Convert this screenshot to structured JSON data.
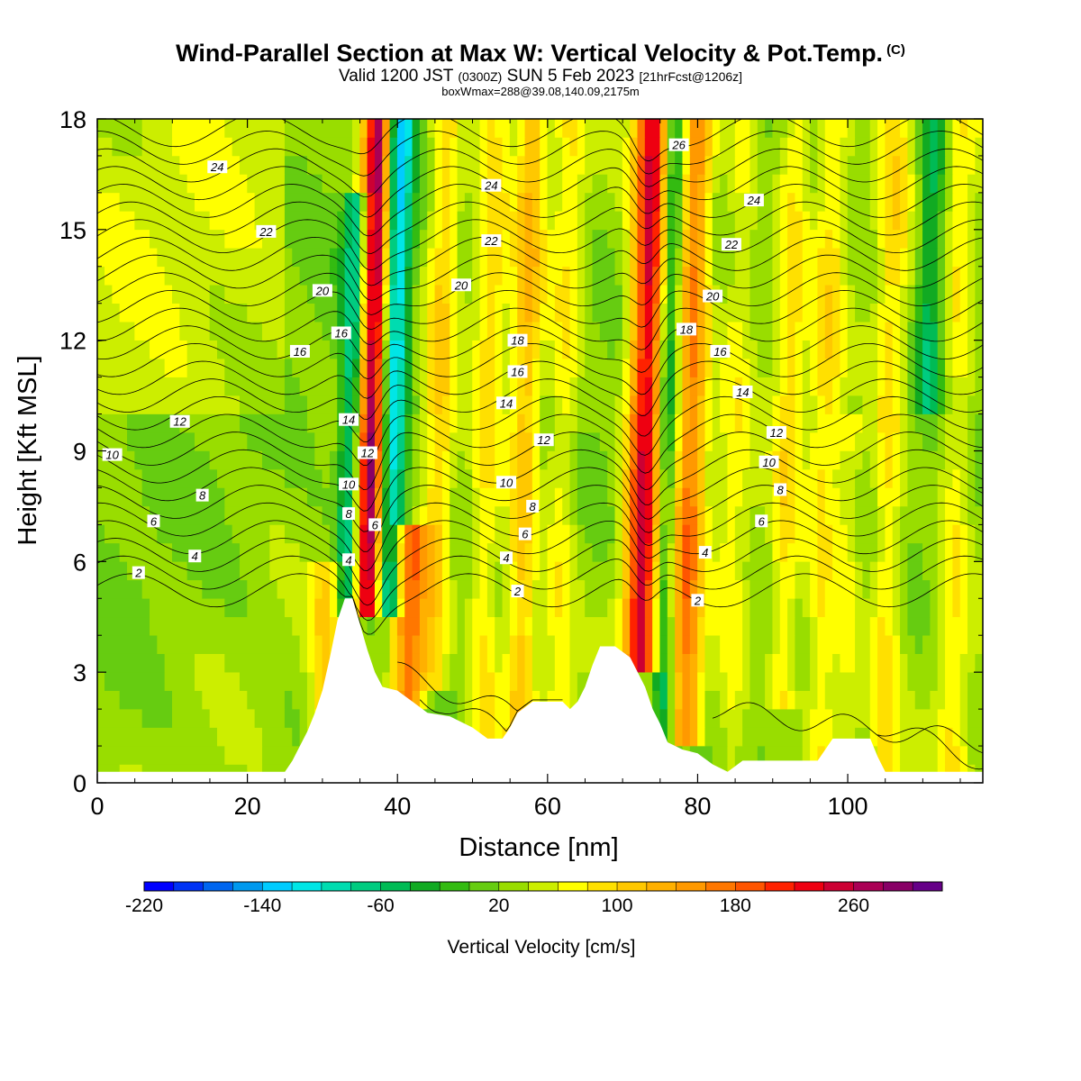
{
  "header": {
    "title": "Wind-Parallel Section at Max W: Vertical Velocity & Pot.Temp.",
    "title_mark": "(C)",
    "subtitle_valid": "Valid 1200 JST",
    "subtitle_z": "(0300Z)",
    "subtitle_date": "SUN 5 Feb 2023",
    "subtitle_fcst": "[21hrFcst@1206z]",
    "info": "boxWmax=288@39.08,140.09,2175m"
  },
  "chart_data": {
    "type": "heatmap",
    "xlabel": "Distance [nm]",
    "ylabel": "Height [Kft MSL]",
    "xlim": [
      0,
      118
    ],
    "ylim": [
      0,
      18
    ],
    "x_ticks": [
      "0",
      "20",
      "40",
      "60",
      "80",
      "100"
    ],
    "y_ticks": [
      "0",
      "3",
      "6",
      "9",
      "12",
      "15",
      "18"
    ],
    "colorbar": {
      "label": "Vertical Velocity [cm/s]",
      "range": [
        -220,
        320
      ],
      "step": 20,
      "tick_labels": [
        "-220",
        "-140",
        "-60",
        "20",
        "100",
        "180",
        "260"
      ],
      "colors": [
        "#0000ff",
        "#0033f5",
        "#0066f0",
        "#0099ee",
        "#00ccff",
        "#00e6e6",
        "#00dcb0",
        "#00cc80",
        "#00bb55",
        "#11aa22",
        "#33bb11",
        "#66cc11",
        "#99dd00",
        "#ccee00",
        "#ffff00",
        "#ffe000",
        "#ffc800",
        "#ffb000",
        "#ff9900",
        "#ff7700",
        "#ff5500",
        "#ff2200",
        "#ee0011",
        "#cc0033",
        "#aa0055",
        "#880066",
        "#660088"
      ]
    },
    "terrain": [
      [
        0,
        0.3
      ],
      [
        25,
        0.3
      ],
      [
        26,
        0.6
      ],
      [
        27,
        1.0
      ],
      [
        28,
        1.4
      ],
      [
        29,
        1.9
      ],
      [
        30,
        2.5
      ],
      [
        31,
        3.4
      ],
      [
        32,
        4.4
      ],
      [
        33,
        5.0
      ],
      [
        34,
        5.0
      ],
      [
        35,
        4.3
      ],
      [
        36,
        3.6
      ],
      [
        37,
        3.0
      ],
      [
        38,
        2.6
      ],
      [
        40,
        2.5
      ],
      [
        42,
        2.2
      ],
      [
        44,
        1.9
      ],
      [
        47,
        1.8
      ],
      [
        50,
        1.5
      ],
      [
        52,
        1.2
      ],
      [
        54,
        1.2
      ],
      [
        55,
        1.5
      ],
      [
        56,
        1.9
      ],
      [
        58,
        2.2
      ],
      [
        62,
        2.2
      ],
      [
        63,
        2.0
      ],
      [
        64,
        2.2
      ],
      [
        65,
        2.6
      ],
      [
        66,
        3.2
      ],
      [
        67,
        3.7
      ],
      [
        69,
        3.7
      ],
      [
        71,
        3.4
      ],
      [
        73,
        2.6
      ],
      [
        74,
        2.0
      ],
      [
        75,
        1.6
      ],
      [
        76,
        1.1
      ],
      [
        78,
        0.9
      ],
      [
        80,
        0.8
      ],
      [
        82,
        0.5
      ],
      [
        84,
        0.3
      ],
      [
        86,
        0.6
      ],
      [
        90,
        0.6
      ],
      [
        96,
        0.6
      ],
      [
        97,
        0.9
      ],
      [
        98,
        1.2
      ],
      [
        103,
        1.2
      ],
      [
        104,
        0.7
      ],
      [
        105,
        0.3
      ],
      [
        118,
        0.3
      ]
    ],
    "w_bands": [
      {
        "center": 30.5,
        "width": 1.5,
        "w": 70,
        "ybot": 0,
        "ytop": 6
      },
      {
        "center": 33.5,
        "width": 1.2,
        "w": -130,
        "ybot": 4.5,
        "ytop": 16
      },
      {
        "center": 36,
        "width": 1.4,
        "w": 270,
        "ybot": 4.5,
        "ytop": 18
      },
      {
        "center": 38.8,
        "width": 1.3,
        "w": -170,
        "ybot": 4.5,
        "ytop": 18
      },
      {
        "center": 41.5,
        "width": 1.6,
        "w": 160,
        "ybot": 2,
        "ytop": 7
      },
      {
        "center": 45,
        "width": 1.4,
        "w": 70,
        "ybot": 2.5,
        "ytop": 18
      },
      {
        "center": 51.5,
        "width": 1.5,
        "w": 60,
        "ybot": 1,
        "ytop": 18
      },
      {
        "center": 56.5,
        "width": 1.4,
        "w": 90,
        "ybot": 1,
        "ytop": 18
      },
      {
        "center": 61.5,
        "width": 1.4,
        "w": 50,
        "ybot": 2,
        "ytop": 18
      },
      {
        "center": 72.5,
        "width": 1.6,
        "w": 220,
        "ybot": 3,
        "ytop": 18
      },
      {
        "center": 75.5,
        "width": 1.0,
        "w": -90,
        "ybot": 0,
        "ytop": 18
      },
      {
        "center": 78.5,
        "width": 1.5,
        "w": 140,
        "ybot": 1,
        "ytop": 18
      },
      {
        "center": 84.5,
        "width": 1.6,
        "w": 40,
        "ybot": 0,
        "ytop": 18
      },
      {
        "center": 91.5,
        "width": 1.4,
        "w": 60,
        "ybot": 2,
        "ytop": 18
      },
      {
        "center": 96.5,
        "width": 1.5,
        "w": 60,
        "ybot": 0,
        "ytop": 18
      },
      {
        "center": 100,
        "width": 1.2,
        "w": 40,
        "ybot": 0,
        "ytop": 10
      },
      {
        "center": 105,
        "width": 1.5,
        "w": 60,
        "ybot": 0,
        "ytop": 18
      },
      {
        "center": 110,
        "width": 1.2,
        "w": -80,
        "ybot": 10,
        "ytop": 18
      },
      {
        "center": 114,
        "width": 1.5,
        "w": 50,
        "ybot": 0,
        "ytop": 18
      }
    ],
    "contour_labels": [
      {
        "text": "24",
        "x": 16,
        "y": 16.7
      },
      {
        "text": "22",
        "x": 22.5,
        "y": 14.95
      },
      {
        "text": "20",
        "x": 30,
        "y": 13.35
      },
      {
        "text": "16",
        "x": 32.5,
        "y": 12.2
      },
      {
        "text": "16",
        "x": 27,
        "y": 11.7
      },
      {
        "text": "12",
        "x": 11,
        "y": 9.8
      },
      {
        "text": "10",
        "x": 2,
        "y": 8.9
      },
      {
        "text": "8",
        "x": 14,
        "y": 7.8
      },
      {
        "text": "6",
        "x": 7.5,
        "y": 7.1
      },
      {
        "text": "4",
        "x": 13,
        "y": 6.15
      },
      {
        "text": "2",
        "x": 5.5,
        "y": 5.7
      },
      {
        "text": "14",
        "x": 33.5,
        "y": 9.85
      },
      {
        "text": "12",
        "x": 36,
        "y": 8.95
      },
      {
        "text": "10",
        "x": 33.5,
        "y": 8.1
      },
      {
        "text": "8",
        "x": 33.5,
        "y": 7.3
      },
      {
        "text": "6",
        "x": 37,
        "y": 7.0
      },
      {
        "text": "4",
        "x": 33.5,
        "y": 6.05
      },
      {
        "text": "26",
        "x": 77.5,
        "y": 17.3
      },
      {
        "text": "24",
        "x": 52.5,
        "y": 16.2
      },
      {
        "text": "24",
        "x": 87.5,
        "y": 15.8
      },
      {
        "text": "22",
        "x": 52.5,
        "y": 14.7
      },
      {
        "text": "22",
        "x": 84.5,
        "y": 14.6
      },
      {
        "text": "20",
        "x": 48.5,
        "y": 13.5
      },
      {
        "text": "20",
        "x": 82,
        "y": 13.2
      },
      {
        "text": "18",
        "x": 56,
        "y": 12.0
      },
      {
        "text": "18",
        "x": 78.5,
        "y": 12.3
      },
      {
        "text": "16",
        "x": 56,
        "y": 11.15
      },
      {
        "text": "16",
        "x": 83,
        "y": 11.7
      },
      {
        "text": "14",
        "x": 54.5,
        "y": 10.3
      },
      {
        "text": "14",
        "x": 86,
        "y": 10.6
      },
      {
        "text": "12",
        "x": 59.5,
        "y": 9.3
      },
      {
        "text": "12",
        "x": 90.5,
        "y": 9.5
      },
      {
        "text": "10",
        "x": 54.5,
        "y": 8.15
      },
      {
        "text": "10",
        "x": 89.5,
        "y": 8.7
      },
      {
        "text": "8",
        "x": 58,
        "y": 7.5
      },
      {
        "text": "8",
        "x": 91,
        "y": 7.95
      },
      {
        "text": "6",
        "x": 57,
        "y": 6.75
      },
      {
        "text": "6",
        "x": 88.5,
        "y": 7.1
      },
      {
        "text": "4",
        "x": 54.5,
        "y": 6.1
      },
      {
        "text": "4",
        "x": 81,
        "y": 6.25
      },
      {
        "text": "2",
        "x": 56,
        "y": 5.2
      },
      {
        "text": "2",
        "x": 80,
        "y": 4.95
      }
    ]
  }
}
